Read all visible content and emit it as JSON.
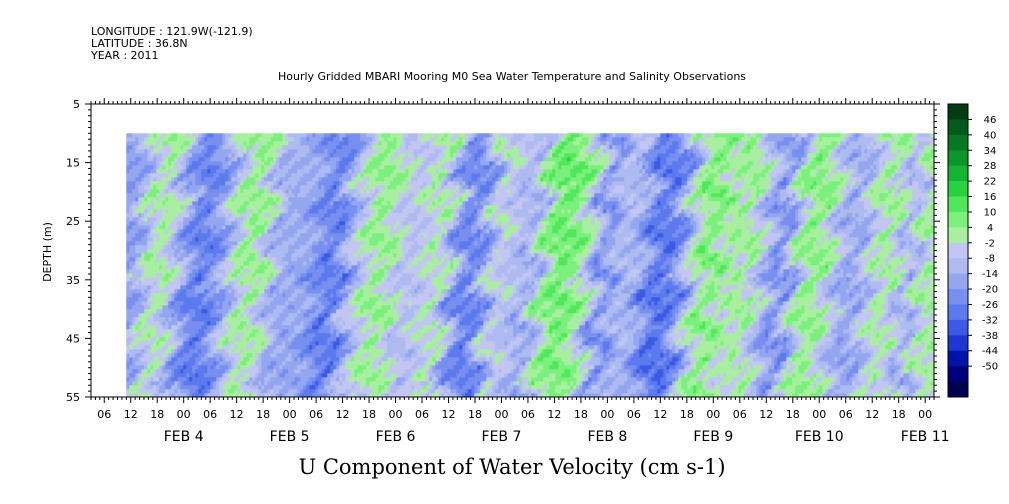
{
  "header": {
    "longitude": "LONGITUDE : 121.9W(-121.9)",
    "latitude": "LATITUDE : 36.8N",
    "year": "YEAR : 2011"
  },
  "chart_data": {
    "type": "heatmap",
    "title": "Hourly Gridded MBARI Mooring M0 Sea Water Temperature and Salinity Observations",
    "variable_title": "U Component of Water Velocity (cm s-1)",
    "ylabel": "DEPTH (m)",
    "y_axis": {
      "range": [
        5,
        55
      ],
      "inverted": true,
      "ticks": [
        5,
        15,
        25,
        35,
        45,
        55
      ],
      "data_range": [
        10,
        55
      ]
    },
    "x_axis": {
      "start": "2011-02-03 03:00",
      "end": "2011-02-11 02:00",
      "data_start": "2011-02-03 11:00",
      "hour_ticks": [
        "06",
        "12",
        "18",
        "00",
        "06",
        "12",
        "18",
        "00",
        "06",
        "12",
        "18",
        "00",
        "06",
        "12",
        "18",
        "00",
        "06",
        "12",
        "18",
        "00",
        "06",
        "12",
        "18",
        "00",
        "06",
        "12",
        "18",
        "00",
        "06",
        "12",
        "18",
        "00"
      ],
      "day_labels": [
        "FEB 4",
        "FEB 5",
        "FEB 6",
        "FEB 7",
        "FEB 8",
        "FEB 9",
        "FEB 10",
        "FEB 11"
      ]
    },
    "colorbar": {
      "levels": [
        46,
        40,
        34,
        28,
        22,
        16,
        10,
        4,
        -2,
        -8,
        -14,
        -20,
        -26,
        -32,
        -38,
        -44,
        -50
      ],
      "range": [
        -50,
        50
      ],
      "colors": [
        "#000050",
        "#00007d",
        "#0014aa",
        "#1e37d2",
        "#3c5ae6",
        "#5a7aee",
        "#788fef",
        "#95a6f0",
        "#adbbf1",
        "#c3c6f2",
        "#a8f0a0",
        "#7cf07c",
        "#50e85a",
        "#28d23c",
        "#14b432",
        "#0a962a",
        "#067822",
        "#045a1a",
        "#023c10"
      ]
    },
    "grid": false
  }
}
